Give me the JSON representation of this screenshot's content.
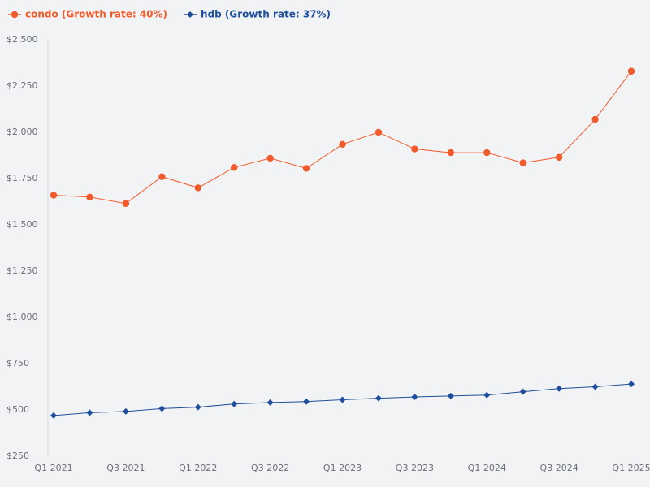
{
  "chart_data": {
    "type": "line",
    "categories": [
      "Q1 2021",
      null,
      "Q3 2021",
      null,
      "Q1 2022",
      null,
      "Q3 2022",
      null,
      "Q1 2023",
      null,
      "Q3 2023",
      null,
      "Q1 2024",
      null,
      "Q3 2024",
      null,
      "Q1 2025"
    ],
    "series": [
      {
        "name": "condo (Growth rate: 40%)",
        "color": "#f15a2b",
        "marker": "circle",
        "values": [
          1660,
          1650,
          1615,
          1760,
          1700,
          1810,
          1860,
          1805,
          1935,
          2000,
          1910,
          1890,
          1890,
          1835,
          1865,
          2070,
          2330
        ]
      },
      {
        "name": "hdb (Growth rate: 37%)",
        "color": "#1f4e9c",
        "marker": "diamond",
        "values": [
          470,
          485,
          492,
          507,
          515,
          532,
          540,
          545,
          555,
          563,
          570,
          575,
          580,
          598,
          615,
          625,
          640
        ]
      }
    ],
    "ylim": [
      250,
      2500
    ],
    "yticks": [
      {
        "value": 250,
        "label": "$250"
      },
      {
        "value": 500,
        "label": "$500"
      },
      {
        "value": 750,
        "label": "$750"
      },
      {
        "value": 1000,
        "label": "$1,000"
      },
      {
        "value": 1250,
        "label": "$1,250"
      },
      {
        "value": 1500,
        "label": "$1,500"
      },
      {
        "value": 1750,
        "label": "$1,750"
      },
      {
        "value": 2000,
        "label": "$2,000"
      },
      {
        "value": 2250,
        "label": "$2,250"
      },
      {
        "value": 2500,
        "label": "$2,500"
      }
    ],
    "grid": false,
    "legend": "top-left"
  }
}
